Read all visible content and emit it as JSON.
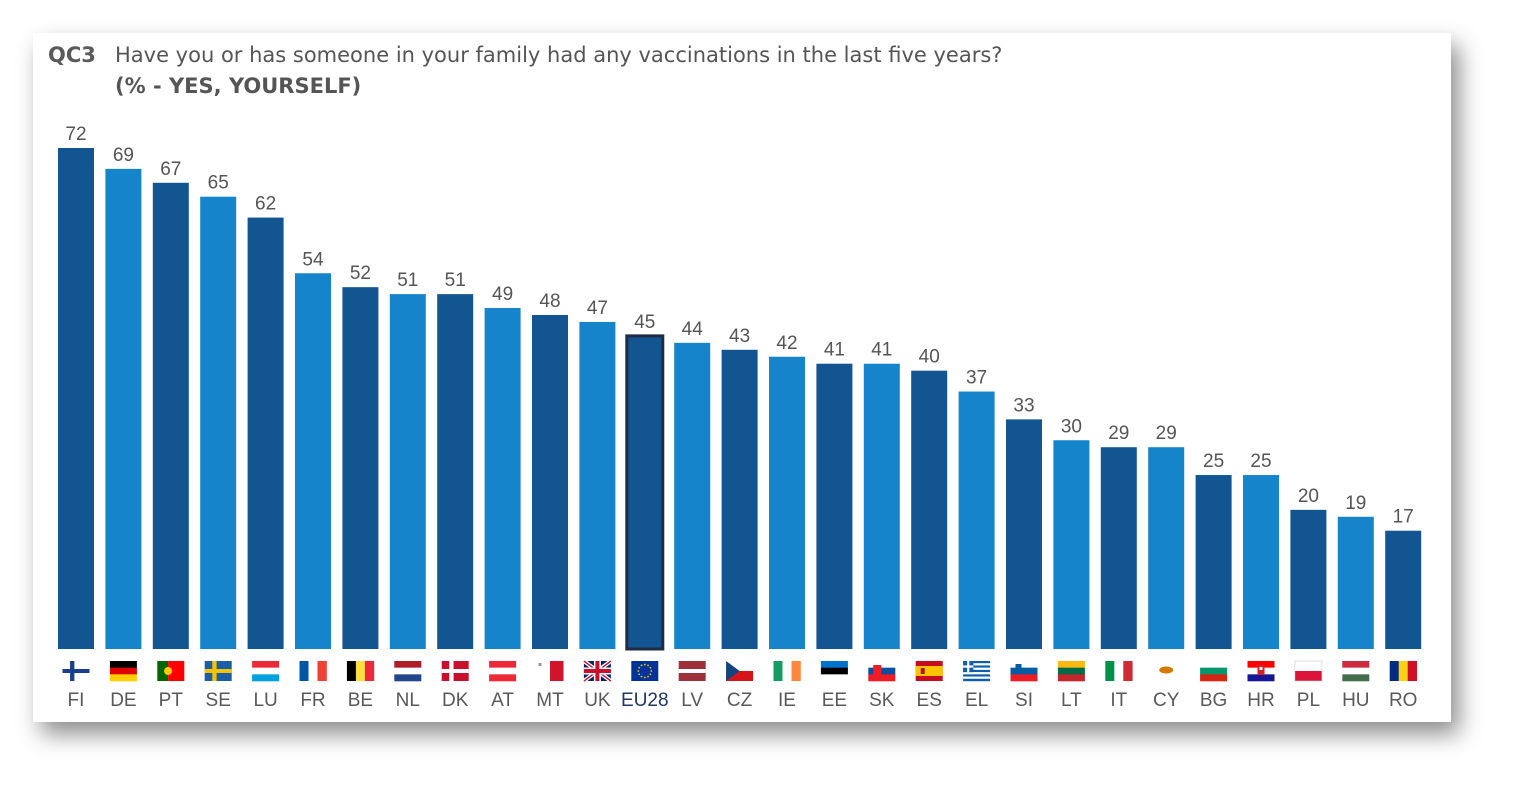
{
  "header": {
    "code": "QC3",
    "question": "Have you or has someone in your family had any vaccinations in the last five years?",
    "subtitle": "(% - YES, YOURSELF)"
  },
  "colors": {
    "dark_bar": "#135591",
    "light_bar": "#1684CA",
    "highlight_outline": "#1F2A44",
    "value_label": "#555555",
    "category_label": "#595959",
    "highlight_label": "#1F3864"
  },
  "chart_data": {
    "type": "bar",
    "title": "",
    "xlabel": "",
    "ylabel": "",
    "ylim": [
      0,
      72
    ],
    "grid": false,
    "categories": [
      "FI",
      "DE",
      "PT",
      "SE",
      "LU",
      "FR",
      "BE",
      "NL",
      "DK",
      "AT",
      "MT",
      "UK",
      "EU28",
      "LV",
      "CZ",
      "IE",
      "EE",
      "SK",
      "ES",
      "EL",
      "SI",
      "LT",
      "IT",
      "CY",
      "BG",
      "HR",
      "PL",
      "HU",
      "RO"
    ],
    "values": [
      72,
      69,
      67,
      65,
      62,
      54,
      52,
      51,
      51,
      49,
      48,
      47,
      45,
      44,
      43,
      42,
      41,
      41,
      40,
      37,
      33,
      30,
      29,
      29,
      25,
      25,
      20,
      19,
      17
    ],
    "highlight": "EU28",
    "flags": [
      "flag-fi-icon",
      "flag-de-icon",
      "flag-pt-icon",
      "flag-se-icon",
      "flag-lu-icon",
      "flag-fr-icon",
      "flag-be-icon",
      "flag-nl-icon",
      "flag-dk-icon",
      "flag-at-icon",
      "flag-mt-icon",
      "flag-uk-icon",
      "flag-eu-icon",
      "flag-lv-icon",
      "flag-cz-icon",
      "flag-ie-icon",
      "flag-ee-icon",
      "flag-sk-icon",
      "flag-es-icon",
      "flag-el-icon",
      "flag-si-icon",
      "flag-lt-icon",
      "flag-it-icon",
      "flag-cy-icon",
      "flag-bg-icon",
      "flag-hr-icon",
      "flag-pl-icon",
      "flag-hu-icon",
      "flag-ro-icon"
    ]
  }
}
